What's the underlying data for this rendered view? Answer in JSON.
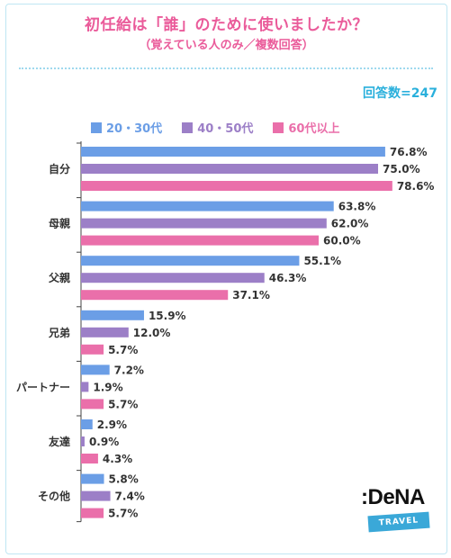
{
  "title": "初任給は「誰」のために使いましたか？",
  "subtitle": "（覚えている人のみ／複数回答）",
  "respondents": "回答数=247",
  "logo": {
    "brand": ":DeNA",
    "badge": "TRAVEL"
  },
  "colors": {
    "title": "#ea5b9a",
    "accent": "#2ab0dc"
  },
  "chart_data": {
    "type": "bar",
    "orientation": "horizontal",
    "categories": [
      "自分",
      "母親",
      "父親",
      "兄弟",
      "パートナー",
      "友達",
      "その他"
    ],
    "series": [
      {
        "name": "20・30代",
        "color": "#6b9ee6",
        "values": [
          76.8,
          63.8,
          55.1,
          15.9,
          7.2,
          2.9,
          5.8
        ]
      },
      {
        "name": "40・50代",
        "color": "#9c7fc7",
        "values": [
          75.0,
          62.0,
          46.3,
          12.0,
          1.9,
          0.9,
          7.4
        ]
      },
      {
        "name": "60代以上",
        "color": "#ea6faa",
        "values": [
          78.6,
          60.0,
          37.1,
          5.7,
          5.7,
          4.3,
          5.7
        ]
      }
    ],
    "unit": "%",
    "xlim": [
      0,
      80
    ],
    "legend_position": "top",
    "grid": false
  }
}
